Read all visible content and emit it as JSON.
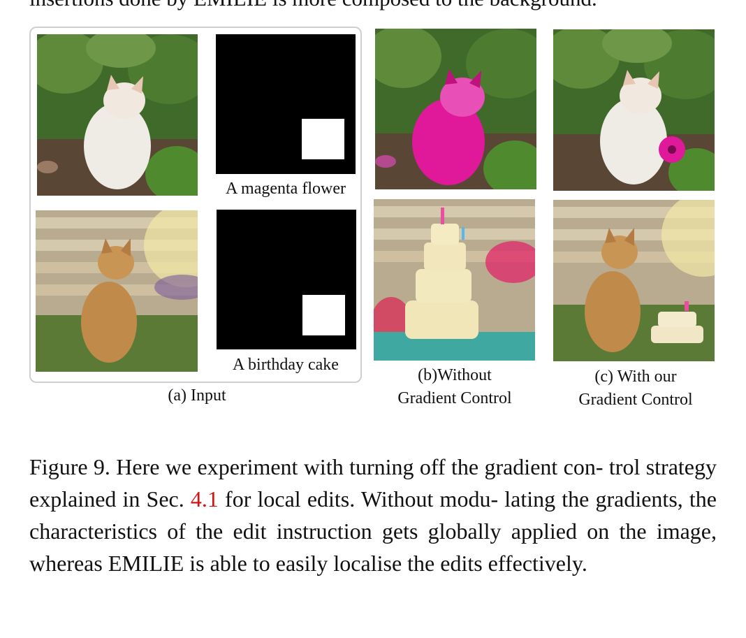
{
  "top_text": "insertions done by EMILIE is more composed to the background.",
  "panels": {
    "a": {
      "label": "(a) Input"
    },
    "b": {
      "label_line1": "(b)Without",
      "label_line2": "Gradient Control"
    },
    "c": {
      "label_line1": "(c) With our",
      "label_line2": "Gradient Control"
    }
  },
  "prompts": {
    "row1": "A magenta flower",
    "row2": "A birthday cake"
  },
  "caption": {
    "part1": "Figure 9.  Here we experiment with turning off the gradient con- trol strategy explained in Sec. ",
    "ref": "4.1",
    "part2": " for local edits.  Without modu- lating the gradients, the characteristics of the edit instruction gets globally applied on the image, whereas EMILIE is able to easily localise the edits effectively."
  },
  "colors": {
    "reference": "#d31414",
    "magenta": "#e0189a",
    "frame": "#cfcfcf"
  }
}
